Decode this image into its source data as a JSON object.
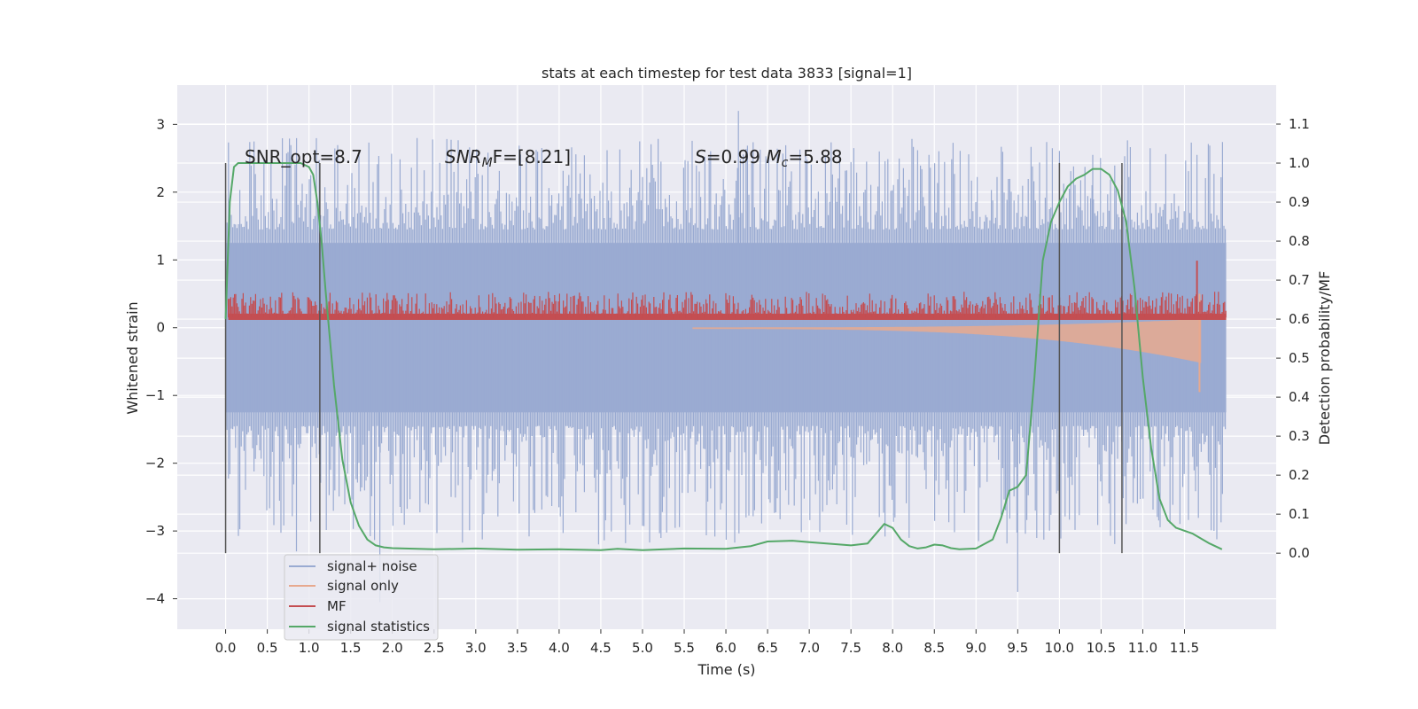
{
  "chart_data": {
    "type": "line",
    "title": "stats at each timestep for test data 3833 [signal=1]",
    "xlabel": "Time (s)",
    "ylabel_left": "Whitened strain",
    "ylabel_right": "Detection probability/MF",
    "xlim": [
      -0.58,
      12.6
    ],
    "ylim_left": [
      -4.45,
      3.58
    ],
    "ylim_right": [
      -0.195,
      1.2
    ],
    "x_ticks": [
      "0.0",
      "0.5",
      "1.0",
      "1.5",
      "2.0",
      "2.5",
      "3.0",
      "3.5",
      "4.0",
      "4.5",
      "5.0",
      "5.5",
      "6.0",
      "6.5",
      "7.0",
      "7.5",
      "8.0",
      "8.5",
      "9.0",
      "9.5",
      "10.0",
      "10.5",
      "11.0",
      "11.5"
    ],
    "y_ticks_left": [
      "−4",
      "−3",
      "−2",
      "−1",
      "0",
      "1",
      "2",
      "3"
    ],
    "y_ticks_right": [
      "0.0",
      "0.1",
      "0.2",
      "0.3",
      "0.4",
      "0.5",
      "0.6",
      "0.7",
      "0.8",
      "0.9",
      "1.0",
      "1.1"
    ],
    "grid": true,
    "legend_placement": "lower-left",
    "annotations": [
      {
        "text": "SNR_opt=8.7",
        "x": 0.2
      },
      {
        "text_parts": [
          "SNR",
          "M",
          "F=[8.21]"
        ],
        "x": 2.6
      },
      {
        "text_parts": [
          "S",
          "=0.99  ",
          "M",
          "c",
          "=5.88"
        ],
        "x": 5.6
      }
    ],
    "vertical_lines": [
      0.0,
      1.13,
      10.0,
      10.75
    ],
    "vertical_line_range_right": [
      0.0,
      1.0
    ],
    "series": [
      {
        "name": "signal+ noise",
        "color": "#9aabd2",
        "axis": "left",
        "envelope": {
          "x_range": [
            0.0,
            12.0
          ],
          "core": 1.25,
          "peak": 3.2,
          "min": -3.9
        }
      },
      {
        "name": "signal only",
        "color": "#e7a98f",
        "axis": "left",
        "chirp": {
          "x_range": [
            0.0,
            11.7
          ],
          "peak_time": 11.68,
          "max_amp": 0.9
        }
      },
      {
        "name": "MF",
        "color": "#c44e52",
        "axis": "right",
        "range": [
          0.6,
          0.65
        ],
        "spike": {
          "x": 11.65,
          "value": 0.75
        }
      },
      {
        "name": "signal statistics",
        "color": "#55a868",
        "axis": "right",
        "x": [
          0.0,
          0.05,
          0.1,
          0.15,
          0.2,
          0.3,
          0.5,
          0.7,
          0.9,
          1.0,
          1.05,
          1.1,
          1.15,
          1.2,
          1.3,
          1.4,
          1.5,
          1.6,
          1.7,
          1.8,
          1.9,
          2.0,
          2.5,
          3.0,
          3.5,
          4.0,
          4.5,
          4.7,
          5.0,
          5.5,
          6.0,
          6.3,
          6.5,
          6.8,
          7.0,
          7.5,
          7.7,
          7.8,
          7.9,
          8.0,
          8.1,
          8.2,
          8.3,
          8.4,
          8.5,
          8.6,
          8.7,
          8.8,
          9.0,
          9.2,
          9.3,
          9.4,
          9.5,
          9.6,
          9.7,
          9.8,
          9.9,
          10.0,
          10.1,
          10.2,
          10.3,
          10.4,
          10.5,
          10.6,
          10.7,
          10.8,
          10.9,
          11.0,
          11.1,
          11.2,
          11.3,
          11.4,
          11.6,
          11.8,
          11.95
        ],
        "y": [
          0.6,
          0.9,
          0.99,
          1.0,
          1.0,
          1.0,
          1.0,
          1.0,
          1.0,
          0.99,
          0.97,
          0.9,
          0.8,
          0.67,
          0.43,
          0.24,
          0.13,
          0.07,
          0.035,
          0.02,
          0.015,
          0.013,
          0.01,
          0.012,
          0.009,
          0.01,
          0.008,
          0.011,
          0.008,
          0.012,
          0.011,
          0.018,
          0.03,
          0.032,
          0.028,
          0.02,
          0.025,
          0.05,
          0.075,
          0.065,
          0.035,
          0.018,
          0.012,
          0.015,
          0.022,
          0.02,
          0.013,
          0.01,
          0.012,
          0.035,
          0.09,
          0.16,
          0.17,
          0.2,
          0.45,
          0.75,
          0.85,
          0.9,
          0.94,
          0.96,
          0.97,
          0.985,
          0.985,
          0.97,
          0.93,
          0.85,
          0.68,
          0.45,
          0.27,
          0.14,
          0.085,
          0.065,
          0.05,
          0.025,
          0.01
        ]
      }
    ]
  }
}
